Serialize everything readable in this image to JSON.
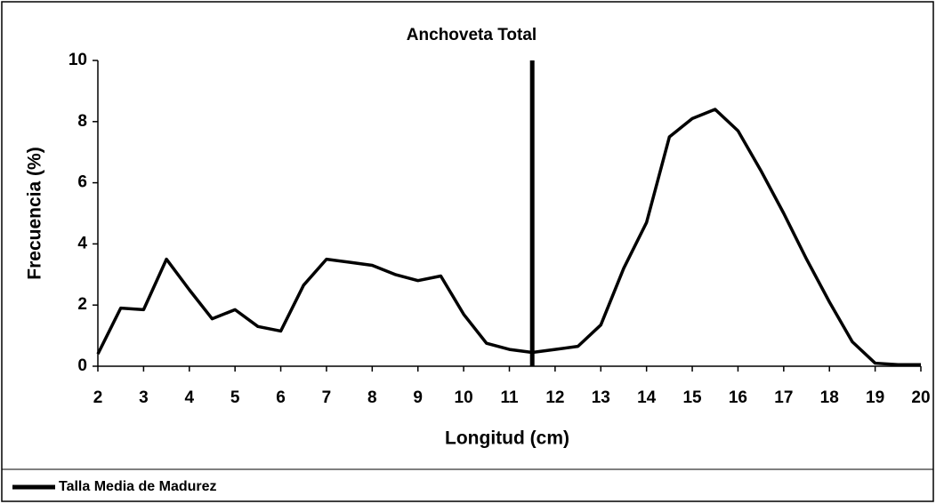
{
  "chart_data": {
    "type": "line",
    "title": "Anchoveta Total",
    "x_label": "Longitud (cm)",
    "y_label": "Frecuencia (%)",
    "x": [
      2,
      2.5,
      3,
      3.5,
      4,
      4.5,
      5,
      5.5,
      6,
      6.5,
      7,
      7.5,
      8,
      8.5,
      9,
      9.5,
      10,
      10.5,
      11,
      11.5,
      12,
      12.5,
      13,
      13.5,
      14,
      14.5,
      15,
      15.5,
      16,
      16.5,
      17,
      17.5,
      18,
      18.5,
      19,
      19.5,
      20
    ],
    "series": [
      {
        "color": "#000000",
        "values": [
          0.4,
          1.9,
          1.85,
          3.5,
          2.5,
          1.55,
          1.85,
          1.3,
          1.15,
          2.65,
          3.5,
          3.4,
          3.3,
          3.0,
          2.8,
          2.95,
          1.7,
          0.75,
          0.55,
          0.45,
          0.55,
          0.65,
          1.35,
          3.2,
          4.7,
          7.5,
          8.1,
          8.4,
          7.7,
          6.4,
          5.0,
          3.5,
          2.1,
          0.8,
          0.1,
          0.05,
          0.05
        ]
      }
    ],
    "vline": {
      "name": "Talla Media de Madurez",
      "x": 11.5,
      "color": "#000000"
    },
    "xlim": [
      2,
      20
    ],
    "ylim": [
      0,
      10
    ],
    "xticks": [
      2,
      3,
      4,
      5,
      6,
      7,
      8,
      9,
      10,
      11,
      12,
      13,
      14,
      15,
      16,
      17,
      18,
      19,
      20
    ],
    "yticks": [
      0,
      2,
      4,
      6,
      8,
      10
    ]
  }
}
